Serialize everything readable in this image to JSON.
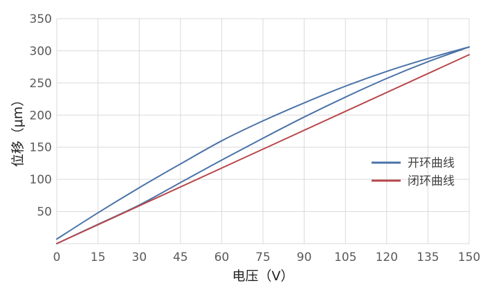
{
  "chart_data": {
    "type": "line",
    "xlabel": "电压（V）",
    "ylabel": "位移（μm）",
    "xlim": [
      0,
      150
    ],
    "ylim": [
      0,
      350
    ],
    "x_ticks": [
      0,
      15,
      30,
      45,
      60,
      75,
      90,
      105,
      120,
      135,
      150
    ],
    "y_ticks": [
      50,
      100,
      150,
      200,
      250,
      300,
      350
    ],
    "grid": true,
    "legend_position": "right",
    "series": [
      {
        "name": "开环曲线",
        "color": "#4a72a8",
        "segments": [
          {
            "x": [
              0,
              15,
              30,
              45,
              60,
              75,
              90,
              105,
              120,
              135,
              150
            ],
            "y": [
              7,
              48,
              87,
              124,
              160,
              191,
              219,
              245,
              268,
              288,
              306
            ]
          },
          {
            "x": [
              0,
              15,
              30,
              45,
              60,
              75,
              90,
              105,
              120,
              135,
              150
            ],
            "y": [
              0,
              30,
              60,
              95,
              130,
              164,
              197,
              228,
              257,
              283,
              306
            ]
          }
        ]
      },
      {
        "name": "闭环曲线",
        "color": "#b8474a",
        "segments": [
          {
            "x": [
              0,
              150
            ],
            "y": [
              0,
              294
            ]
          }
        ]
      }
    ]
  }
}
